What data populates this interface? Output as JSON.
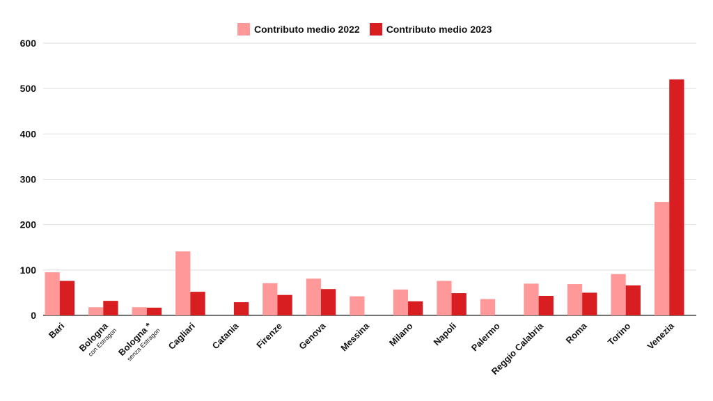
{
  "chart_data": {
    "type": "bar",
    "title": "",
    "xlabel": "",
    "ylabel": "",
    "ylim": [
      0,
      600
    ],
    "yticks": [
      0,
      100,
      200,
      300,
      400,
      500,
      600
    ],
    "grid": true,
    "legend_position": "top-center",
    "categories": [
      {
        "label": "Bari",
        "sub": ""
      },
      {
        "label": "Bologna",
        "sub": "con Estragon"
      },
      {
        "label": "Bologna *",
        "sub": "senza Estragon"
      },
      {
        "label": "Cagliari",
        "sub": ""
      },
      {
        "label": "Catania",
        "sub": ""
      },
      {
        "label": "Firenze",
        "sub": ""
      },
      {
        "label": "Genova",
        "sub": ""
      },
      {
        "label": "Messina",
        "sub": ""
      },
      {
        "label": "Milano",
        "sub": ""
      },
      {
        "label": "Napoli",
        "sub": ""
      },
      {
        "label": "Palermo",
        "sub": ""
      },
      {
        "label": "Reggio Calabria",
        "sub": ""
      },
      {
        "label": "Roma",
        "sub": ""
      },
      {
        "label": "Torino",
        "sub": ""
      },
      {
        "label": "Venezia",
        "sub": ""
      }
    ],
    "series": [
      {
        "name": "Contributo medio 2022",
        "color": "#ff9999",
        "values": [
          95,
          18,
          18,
          141,
          null,
          71,
          81,
          42,
          57,
          76,
          36,
          70,
          69,
          91,
          250
        ]
      },
      {
        "name": "Contributo medio 2023",
        "color": "#d81e20",
        "values": [
          76,
          32,
          17,
          52,
          29,
          45,
          58,
          null,
          31,
          49,
          null,
          43,
          50,
          66,
          520
        ]
      }
    ]
  }
}
